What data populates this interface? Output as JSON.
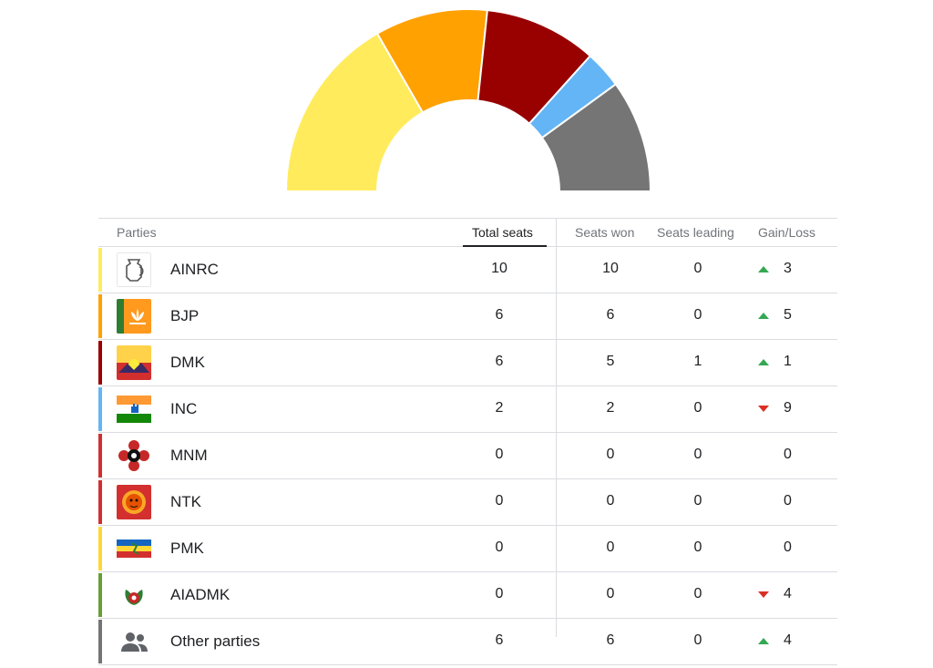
{
  "chart_data": {
    "type": "pie",
    "shape": "half-donut",
    "categories": [
      "AINRC",
      "BJP",
      "DMK",
      "INC",
      "Other parties"
    ],
    "values": [
      10,
      6,
      6,
      2,
      6
    ],
    "colors": [
      "#ffeb5c",
      "#ffa100",
      "#990000",
      "#64b5f6",
      "#757575"
    ]
  },
  "table": {
    "headers": {
      "parties": "Parties",
      "total_seats": "Total seats",
      "seats_won": "Seats won",
      "seats_leading": "Seats leading",
      "gain_loss": "Gain/Loss"
    },
    "rows": [
      {
        "party": "AINRC",
        "total": "10",
        "won": "10",
        "leading": "0",
        "gain": "3",
        "dir": "up",
        "color": "#ffeb5c",
        "logo": "jug-symbol-icon"
      },
      {
        "party": "BJP",
        "total": "6",
        "won": "6",
        "leading": "0",
        "gain": "5",
        "dir": "up",
        "color": "#ffa100",
        "logo": "lotus-flag-icon"
      },
      {
        "party": "DMK",
        "total": "6",
        "won": "5",
        "leading": "1",
        "gain": "1",
        "dir": "up",
        "color": "#990000",
        "logo": "rising-sun-flag-icon"
      },
      {
        "party": "INC",
        "total": "2",
        "won": "2",
        "leading": "0",
        "gain": "9",
        "dir": "down",
        "color": "#64b5f6",
        "logo": "tricolor-hand-flag-icon"
      },
      {
        "party": "MNM",
        "total": "0",
        "won": "0",
        "leading": "0",
        "gain": "0",
        "dir": "none",
        "color": "#d32f2f",
        "logo": "joined-hands-emblem-icon"
      },
      {
        "party": "NTK",
        "total": "0",
        "won": "0",
        "leading": "0",
        "gain": "0",
        "dir": "none",
        "color": "#d32f2f",
        "logo": "tiger-emblem-icon"
      },
      {
        "party": "PMK",
        "total": "0",
        "won": "0",
        "leading": "0",
        "gain": "0",
        "dir": "none",
        "color": "#fdd835",
        "logo": "tricolor-band-flag-icon"
      },
      {
        "party": "AIADMK",
        "total": "0",
        "won": "0",
        "leading": "0",
        "gain": "4",
        "dir": "down",
        "color": "#689f38",
        "logo": "two-leaves-emblem-icon"
      },
      {
        "party": "Other parties",
        "total": "6",
        "won": "6",
        "leading": "0",
        "gain": "4",
        "dir": "up",
        "color": "#757575",
        "logo": "people-icon"
      }
    ]
  }
}
